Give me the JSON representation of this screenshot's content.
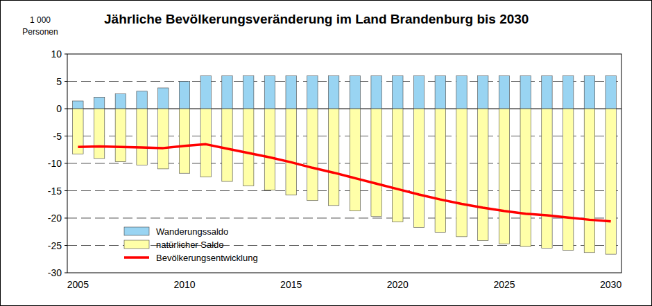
{
  "chart_data": {
    "type": "bar",
    "title": "Jährliche Bevölkerungsveränderung im Land Brandenburg bis 2030",
    "y_label": [
      "1 000",
      "Personen"
    ],
    "categories": [
      "2005",
      null,
      null,
      null,
      null,
      "2010",
      null,
      null,
      null,
      null,
      "2015",
      null,
      null,
      null,
      null,
      "2020",
      null,
      null,
      null,
      null,
      "2025",
      null,
      null,
      null,
      null,
      "2030"
    ],
    "series": [
      {
        "name": "Wanderungssaldo",
        "type": "bar",
        "color": "#99d4f2",
        "values": [
          1.4,
          2.1,
          2.7,
          3.2,
          3.8,
          5.0,
          6.0,
          6.0,
          6.0,
          6.0,
          6.0,
          6.0,
          6.0,
          6.0,
          6.0,
          6.0,
          6.0,
          6.0,
          6.0,
          6.0,
          6.0,
          6.0,
          6.0,
          6.0,
          6.0,
          6.0
        ]
      },
      {
        "name": "natürlicher Saldo",
        "type": "bar",
        "color": "#ffffa8",
        "values": [
          -8.3,
          -9.1,
          -9.7,
          -10.3,
          -11.0,
          -11.8,
          -12.5,
          -13.3,
          -14.1,
          -14.9,
          -15.8,
          -16.8,
          -17.7,
          -18.7,
          -19.7,
          -20.7,
          -21.7,
          -22.6,
          -23.4,
          -24.1,
          -24.7,
          -25.2,
          -25.5,
          -25.9,
          -26.3,
          -26.6
        ]
      },
      {
        "name": "Bevölkerungsentwicklung",
        "type": "line",
        "color": "#ff0000",
        "values": [
          -7.0,
          -6.9,
          -7.0,
          -7.1,
          -7.2,
          -6.8,
          -6.5,
          -7.3,
          -8.1,
          -8.9,
          -9.8,
          -10.8,
          -11.7,
          -12.7,
          -13.7,
          -14.7,
          -15.7,
          -16.6,
          -17.4,
          -18.1,
          -18.7,
          -19.2,
          -19.5,
          -19.9,
          -20.3,
          -20.6
        ]
      }
    ],
    "ylim": [
      -30,
      10
    ],
    "yticks": [
      -30,
      -25,
      -20,
      -15,
      -10,
      -5,
      0,
      5,
      10
    ],
    "stacked": true,
    "grid": true,
    "legend": "lower left"
  }
}
